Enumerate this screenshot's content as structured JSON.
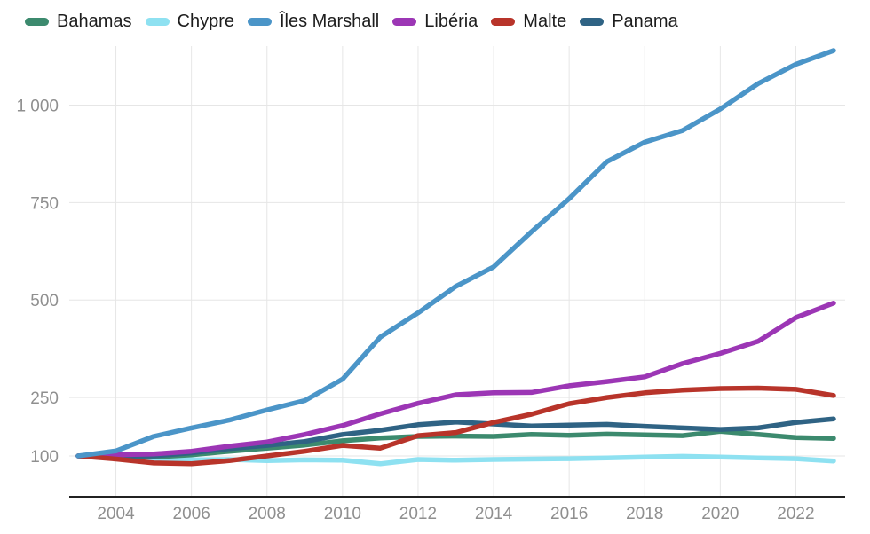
{
  "legend": {
    "items": [
      {
        "label": "Bahamas",
        "color": "#3c8a6e"
      },
      {
        "label": "Chypre",
        "color": "#8ee1f1"
      },
      {
        "label": "Îles Marshall",
        "color": "#4b95c8"
      },
      {
        "label": "Libéria",
        "color": "#9c36b5"
      },
      {
        "label": "Malte",
        "color": "#b8342a"
      },
      {
        "label": "Panama",
        "color": "#2f6384"
      }
    ]
  },
  "chart_data": {
    "type": "line",
    "title": "",
    "xlabel": "",
    "ylabel": "",
    "x": [
      2003,
      2004,
      2005,
      2006,
      2007,
      2008,
      2009,
      2010,
      2011,
      2012,
      2013,
      2014,
      2015,
      2016,
      2017,
      2018,
      2019,
      2020,
      2021,
      2022,
      2023
    ],
    "series": [
      {
        "name": "Bahamas",
        "color": "#3c8a6e",
        "values": [
          100,
          99,
          97,
          103,
          112,
          120,
          128,
          139,
          146,
          150,
          151,
          150,
          155,
          153,
          156,
          154,
          152,
          163,
          155,
          147,
          145
        ]
      },
      {
        "name": "Chypre",
        "color": "#8ee1f1",
        "values": [
          100,
          97,
          93,
          90,
          91,
          88,
          90,
          89,
          80,
          91,
          89,
          91,
          92,
          93,
          95,
          97,
          99,
          97,
          95,
          93,
          87
        ]
      },
      {
        "name": "Îles Marshall",
        "color": "#4b95c8",
        "values": [
          100,
          113,
          150,
          172,
          192,
          218,
          242,
          297,
          405,
          467,
          535,
          585,
          675,
          760,
          855,
          905,
          935,
          990,
          1055,
          1105,
          1140
        ]
      },
      {
        "name": "Libéria",
        "color": "#9c36b5",
        "values": [
          100,
          103,
          105,
          112,
          125,
          136,
          155,
          178,
          208,
          235,
          257,
          262,
          263,
          280,
          291,
          303,
          337,
          363,
          394,
          455,
          492
        ]
      },
      {
        "name": "Malte",
        "color": "#b8342a",
        "values": [
          100,
          92,
          82,
          80,
          88,
          100,
          112,
          127,
          120,
          152,
          160,
          186,
          207,
          234,
          250,
          262,
          269,
          273,
          274,
          271,
          255
        ]
      },
      {
        "name": "Panama",
        "color": "#2f6384",
        "values": [
          100,
          99,
          100,
          108,
          119,
          127,
          137,
          155,
          166,
          180,
          187,
          182,
          177,
          179,
          181,
          176,
          172,
          168,
          172,
          186,
          195
        ]
      }
    ],
    "x_ticks": [
      2004,
      2006,
      2008,
      2010,
      2012,
      2014,
      2016,
      2018,
      2020,
      2022
    ],
    "x_tick_labels": [
      "2004",
      "2006",
      "2008",
      "2010",
      "2012",
      "2014",
      "2016",
      "2018",
      "2020",
      "2022"
    ],
    "y_ticks": [
      100,
      250,
      500,
      750,
      1000
    ],
    "y_tick_labels": [
      "100",
      "250",
      "500",
      "750",
      "1 000"
    ],
    "xlim": [
      2003,
      2023
    ],
    "ylim": [
      -5,
      1156
    ],
    "grid": "on",
    "legend_position": "top-left",
    "axis_text_color": "#8f8f8f",
    "grid_color": "#e6e6e6",
    "axis_line_color": "#212121"
  }
}
